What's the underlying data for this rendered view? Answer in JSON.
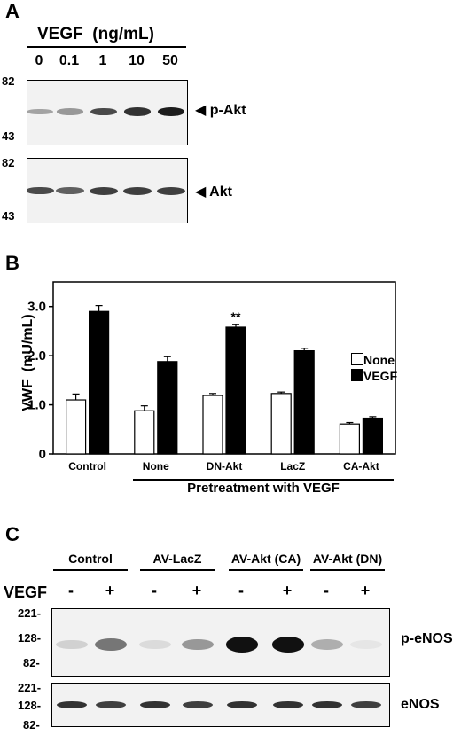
{
  "panelA": {
    "letter": "A",
    "treatment_label": "VEGF  (ng/mL)",
    "doses": [
      "0",
      "0.1",
      "1",
      "10",
      "50"
    ],
    "blot_top": {
      "label": "p-Akt",
      "mw_markers": [
        "82",
        "43"
      ],
      "band_intensity": [
        0.35,
        0.4,
        0.75,
        0.85,
        0.95
      ]
    },
    "blot_bottom": {
      "label": "Akt",
      "mw_markers": [
        "82",
        "43"
      ],
      "band_intensity": [
        0.75,
        0.65,
        0.8,
        0.8,
        0.8
      ]
    }
  },
  "panelB": {
    "letter": "B",
    "chart_data": {
      "type": "bar",
      "categories": [
        "Control",
        "None",
        "DN-Akt",
        "LacZ",
        "CA-Akt"
      ],
      "series": [
        {
          "name": "None",
          "color": "#ffffff",
          "values": [
            1.1,
            0.88,
            1.19,
            1.23,
            0.61
          ],
          "errors": [
            0.12,
            0.1,
            0.04,
            0.03,
            0.03
          ]
        },
        {
          "name": "VEGF",
          "color": "#000000",
          "values": [
            2.9,
            1.88,
            2.58,
            2.1,
            0.73
          ],
          "errors": [
            0.12,
            0.1,
            0.05,
            0.05,
            0.03
          ]
        }
      ],
      "ylabel": "VWF  (mU/mL)",
      "yticks": [
        "0",
        "1.0",
        "2.0",
        "3.0"
      ],
      "ylim": [
        0,
        3.5
      ],
      "annotation": "**",
      "group_label": "Pretreatment with VEGF",
      "legend_position": "right"
    }
  },
  "panelC": {
    "letter": "C",
    "groups": [
      "Control",
      "AV-LacZ",
      "AV-Akt (CA)",
      "AV-Akt (DN)"
    ],
    "row_label": "VEGF",
    "signs": [
      "-",
      "+",
      "-",
      "+",
      "-",
      "+",
      "-",
      "+"
    ],
    "blot_top": {
      "label": "p-eNOS",
      "mw_markers": [
        "221-",
        "128-",
        "82-"
      ],
      "band_intensity": [
        0.15,
        0.55,
        0.1,
        0.4,
        1.0,
        1.0,
        0.3,
        0.05
      ]
    },
    "blot_bottom": {
      "label": "eNOS",
      "mw_markers": [
        "221-",
        "128-",
        "82-"
      ],
      "band_intensity": [
        0.85,
        0.8,
        0.85,
        0.8,
        0.85,
        0.85,
        0.85,
        0.8
      ]
    }
  }
}
